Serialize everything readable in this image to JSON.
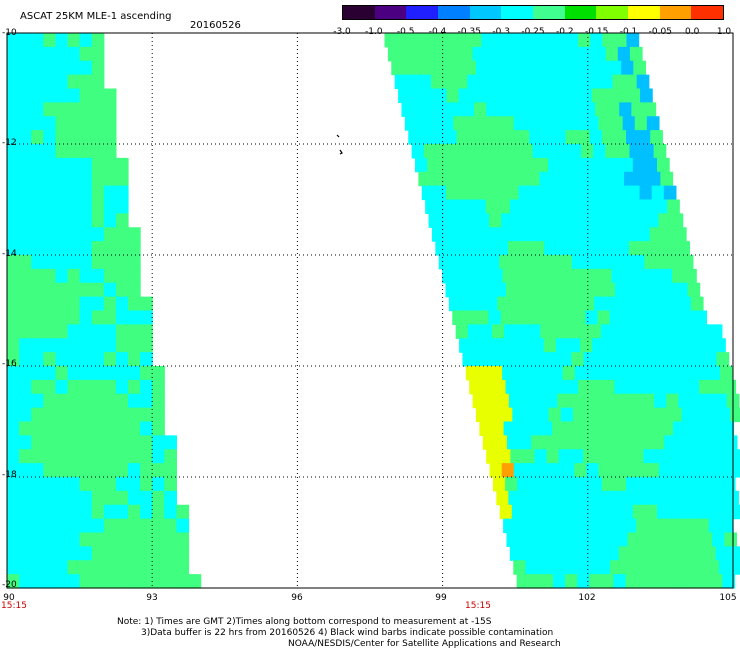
{
  "header": {
    "title": "ASCAT 25KM MLE-1 ascending",
    "date": "20160526"
  },
  "colorbar": {
    "colors": [
      "#2a0033",
      "#4a0080",
      "#2020ff",
      "#0080ff",
      "#00c8ff",
      "#00ffff",
      "#40ff90",
      "#00e000",
      "#80ff00",
      "#ffff00",
      "#ffa000",
      "#ff3000"
    ],
    "tick_labels": [
      "-3.0",
      "-1.0",
      "-0.5",
      "-0.4",
      "-0.35",
      "-0.3",
      "-0.25",
      "-0.2",
      "-0.15",
      "-0.1",
      "-0.05",
      "0.0",
      "1.0"
    ]
  },
  "map": {
    "lon_range": [
      90,
      105
    ],
    "lat_range": [
      -20,
      -10
    ],
    "lon_ticks": [
      "90",
      "93",
      "96",
      "99",
      "102",
      "105"
    ],
    "lat_ticks": [
      "-10",
      "-12",
      "-14",
      "-16",
      "-18",
      "-20"
    ],
    "grid": "dotted",
    "swath_times": [
      "15:15",
      "15:15"
    ],
    "colors": {
      "cyan": "#00ffff",
      "green": "#40ff80",
      "yellow": "#e8ff00",
      "orange": "#ffa000",
      "blue": "#00c0ff"
    }
  },
  "notes": {
    "line1": "Note: 1) Times are GMT 2)Times along bottom correspond to measurement at -15S",
    "line2": "3)Data buffer is 22 hrs from 20160526 4) Black wind barbs indicate possible contamination",
    "line3": "NOAA/NESDIS/Center for Satellite Applications and Research"
  }
}
